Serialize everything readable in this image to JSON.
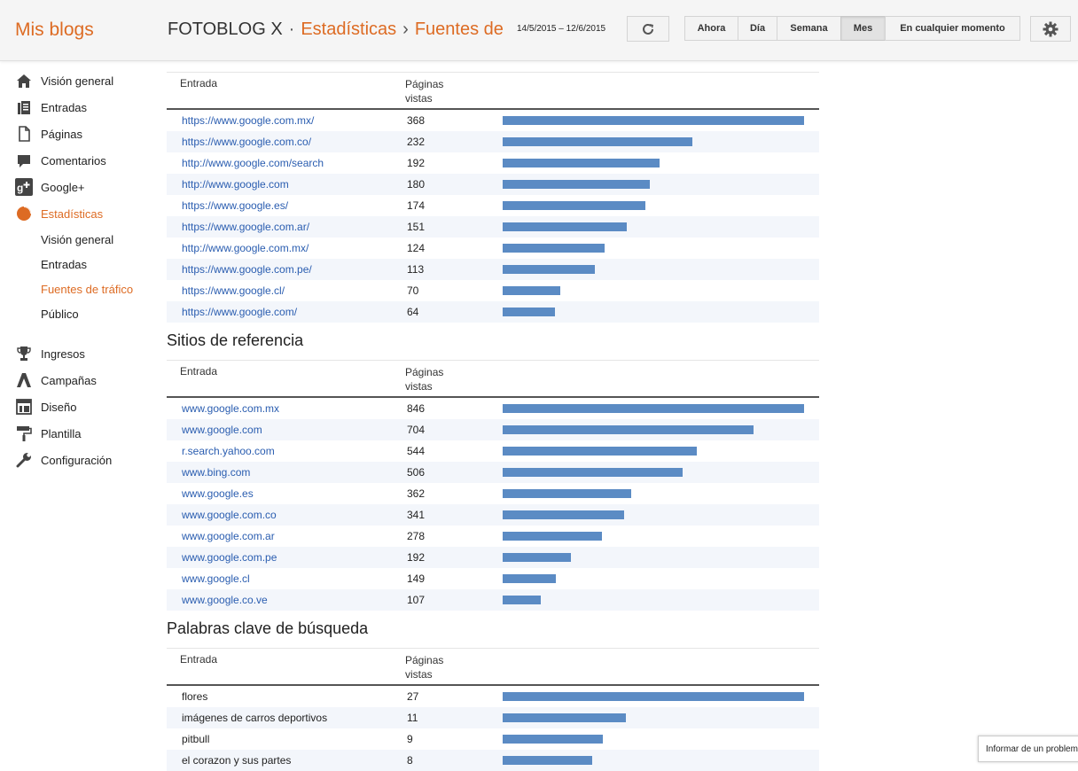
{
  "header": {
    "brand": "Mis blogs",
    "blog_name": "FOTOBLOG X",
    "sep1": "·",
    "section": "Estadísticas",
    "sep2": "›",
    "subsection": "Fuentes de",
    "date_range": "14/5/2015 – 12/6/2015",
    "refresh_icon": "refresh-icon",
    "settings_icon": "gear-icon",
    "range_buttons": [
      "Ahora",
      "Día",
      "Semana",
      "Mes",
      "En cualquier momento"
    ],
    "active_range": "Mes"
  },
  "sidebar": {
    "items": [
      {
        "label": "Visión general",
        "icon": "home-icon"
      },
      {
        "label": "Entradas",
        "icon": "posts-icon"
      },
      {
        "label": "Páginas",
        "icon": "pages-icon"
      },
      {
        "label": "Comentarios",
        "icon": "comment-icon"
      },
      {
        "label": "Google+",
        "icon": "google-plus-icon"
      },
      {
        "label": "Estadísticas",
        "icon": "stats-pie-icon"
      }
    ],
    "sub_items": [
      {
        "label": "Visión general"
      },
      {
        "label": "Entradas"
      },
      {
        "label": "Fuentes de tráfico"
      },
      {
        "label": "Público"
      }
    ],
    "items2": [
      {
        "label": "Ingresos",
        "icon": "trophy-icon"
      },
      {
        "label": "Campañas",
        "icon": "campaign-icon"
      },
      {
        "label": "Diseño",
        "icon": "layout-icon"
      },
      {
        "label": "Plantilla",
        "icon": "paint-roller-icon"
      },
      {
        "label": "Configuración",
        "icon": "wrench-icon"
      }
    ],
    "accent": "#dd6b23"
  },
  "tables": [
    {
      "title": "",
      "col1": "Entrada",
      "col2": "Páginas vistas",
      "link": true,
      "rows": [
        {
          "entry": "https://www.google.com.mx/",
          "views": 368
        },
        {
          "entry": "https://www.google.com.co/",
          "views": 232
        },
        {
          "entry": "http://www.google.com/search",
          "views": 192
        },
        {
          "entry": "http://www.google.com",
          "views": 180
        },
        {
          "entry": "https://www.google.es/",
          "views": 174
        },
        {
          "entry": "https://www.google.com.ar/",
          "views": 151
        },
        {
          "entry": "http://www.google.com.mx/",
          "views": 124
        },
        {
          "entry": "https://www.google.com.pe/",
          "views": 113
        },
        {
          "entry": "https://www.google.cl/",
          "views": 70
        },
        {
          "entry": "https://www.google.com/",
          "views": 64
        }
      ]
    },
    {
      "title": "Sitios de referencia",
      "col1": "Entrada",
      "col2": "Páginas vistas",
      "link": true,
      "rows": [
        {
          "entry": "www.google.com.mx",
          "views": 846
        },
        {
          "entry": "www.google.com",
          "views": 704
        },
        {
          "entry": "r.search.yahoo.com",
          "views": 544
        },
        {
          "entry": "www.bing.com",
          "views": 506
        },
        {
          "entry": "www.google.es",
          "views": 362
        },
        {
          "entry": "www.google.com.co",
          "views": 341
        },
        {
          "entry": "www.google.com.ar",
          "views": 278
        },
        {
          "entry": "www.google.com.pe",
          "views": 192
        },
        {
          "entry": "www.google.cl",
          "views": 149
        },
        {
          "entry": "www.google.co.ve",
          "views": 107
        }
      ]
    },
    {
      "title": "Palabras clave de búsqueda",
      "col1": "Entrada",
      "col2": "Páginas vistas",
      "link": false,
      "rows": [
        {
          "entry": "flores",
          "views": 27
        },
        {
          "entry": "imágenes de carros deportivos",
          "views": 11
        },
        {
          "entry": "pitbull",
          "views": 9
        },
        {
          "entry": "el corazon y sus partes",
          "views": 8
        }
      ]
    }
  ],
  "bar_color": "#5b8bc4",
  "report_problem": "Informar de un problema"
}
